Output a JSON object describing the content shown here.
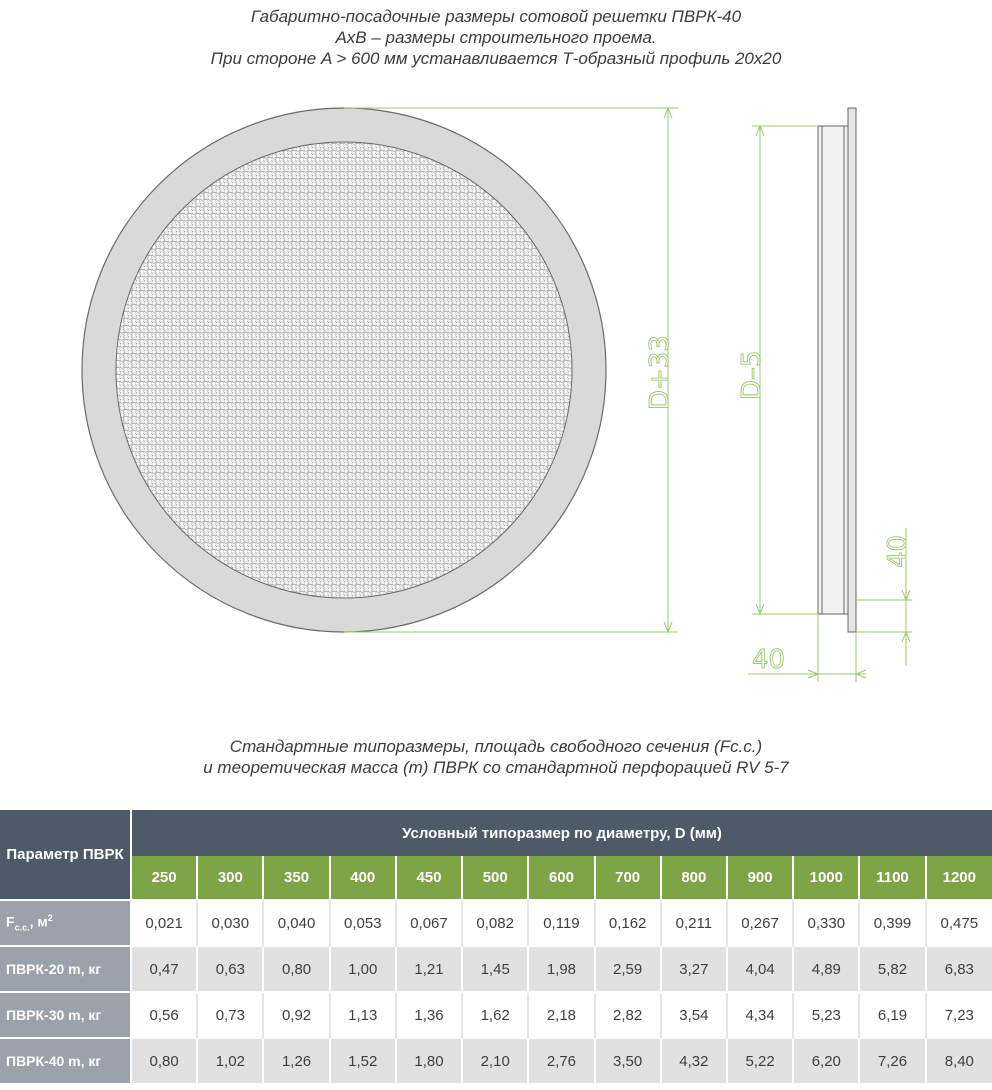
{
  "title": {
    "line1": "Габаритно-посадочные размеры сотовой решетки ПВРК-40",
    "line2": "AxB – размеры строительного проема.",
    "line3": "При стороне A > 600 мм устанавливается Т-образный профиль 20х20"
  },
  "drawing": {
    "dim_front_height": "D+33",
    "dim_side_height": "D–5",
    "dim_side_depth": "40",
    "dim_flange": "40",
    "colors": {
      "rim": "#d8d8d8",
      "mesh": "#e9e9e9",
      "dim_line": "#9bc86a",
      "outline": "#666666"
    }
  },
  "subtitle": {
    "line1": "Стандартные типоразмеры, площадь свободного сечения (Fc.c.)",
    "line2": "и теоретическая масса (m) ПВРК со стандартной перфорацией RV 5-7"
  },
  "table": {
    "param_header": "Параметр ПВРК",
    "group_header": "Условный типоразмер по диаметру, D (мм)",
    "sizes": [
      "250",
      "300",
      "350",
      "400",
      "450",
      "500",
      "600",
      "700",
      "800",
      "900",
      "1000",
      "1100",
      "1200"
    ],
    "rows": [
      {
        "label_main": "F",
        "label_sub": "c.c.",
        "label_rest": ", м",
        "label_sup": "2",
        "values": [
          "0,021",
          "0,030",
          "0,040",
          "0,053",
          "0,067",
          "0,082",
          "0,119",
          "0,162",
          "0,211",
          "0,267",
          "0,330",
          "0,399",
          "0,475"
        ]
      },
      {
        "label_main": "ПВРК-20 m, кг",
        "values": [
          "0,47",
          "0,63",
          "0,80",
          "1,00",
          "1,21",
          "1,45",
          "1,98",
          "2,59",
          "3,27",
          "4,04",
          "4,89",
          "5,82",
          "6,83"
        ]
      },
      {
        "label_main": "ПВРК-30 m, кг",
        "values": [
          "0,56",
          "0,73",
          "0,92",
          "1,13",
          "1,36",
          "1,62",
          "2,18",
          "2,82",
          "3,54",
          "4,34",
          "5,23",
          "6,19",
          "7,23"
        ]
      },
      {
        "label_main": "ПВРК-40 m, кг",
        "values": [
          "0,80",
          "1,02",
          "1,26",
          "1,52",
          "1,80",
          "2,10",
          "2,76",
          "3,50",
          "4,32",
          "5,22",
          "6,20",
          "7,26",
          "8,40"
        ]
      }
    ]
  }
}
